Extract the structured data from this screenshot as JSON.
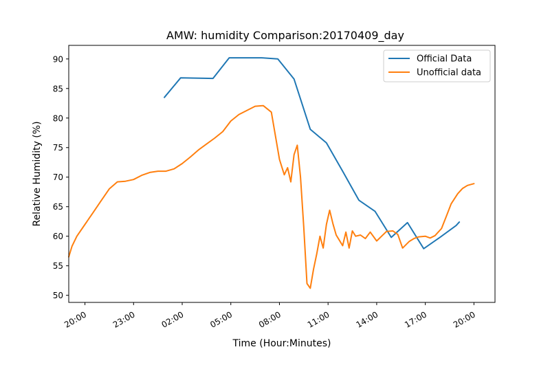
{
  "chart_data": {
    "type": "line",
    "title": "AMW: humidity Comparison:20170409_day",
    "xlabel": "Time (Hour:Minutes)",
    "ylabel": "Relative Humidity (%)",
    "x_tick_labels": [
      "20:00",
      "23:00",
      "02:00",
      "05:00",
      "08:00",
      "11:00",
      "14:00",
      "17:00",
      "20:00"
    ],
    "x_tick_hours": [
      20,
      23,
      26,
      29,
      32,
      35,
      38,
      41,
      44
    ],
    "xlim_hours": [
      19.0,
      45.3
    ],
    "y_ticks": [
      50,
      55,
      60,
      65,
      70,
      75,
      80,
      85,
      90
    ],
    "ylim": [
      48.8,
      92.3
    ],
    "grid": false,
    "legend_position": "top-right",
    "colors": {
      "official": "#1f77b4",
      "unofficial": "#ff7f0e"
    },
    "series": [
      {
        "name": "Official Data",
        "x": [
          24.9,
          25.9,
          27.9,
          28.9,
          30.9,
          31.9,
          32.9,
          33.9,
          34.9,
          35.9,
          36.9,
          37.9,
          38.9,
          39.9,
          40.9,
          41.9,
          42.9,
          43.1
        ],
        "y": [
          83.5,
          86.8,
          86.7,
          90.2,
          90.2,
          90.0,
          86.6,
          78.1,
          75.8,
          71.0,
          66.1,
          64.2,
          59.8,
          62.3,
          57.9,
          59.8,
          61.8,
          62.4
        ]
      },
      {
        "name": "Unofficial data",
        "x": [
          19.0,
          19.2,
          19.5,
          20.0,
          20.5,
          21.0,
          21.5,
          22.0,
          22.5,
          23.0,
          23.5,
          24.0,
          24.5,
          25.0,
          25.5,
          26.0,
          26.5,
          27.0,
          27.5,
          28.0,
          28.5,
          29.0,
          29.5,
          30.0,
          30.5,
          31.0,
          31.5,
          32.0,
          32.3,
          32.5,
          32.7,
          32.9,
          33.1,
          33.3,
          33.5,
          33.7,
          33.9,
          34.1,
          34.3,
          34.5,
          34.7,
          34.9,
          35.1,
          35.3,
          35.5,
          35.7,
          35.9,
          36.1,
          36.3,
          36.5,
          36.7,
          37.0,
          37.3,
          37.6,
          38.0,
          38.3,
          38.6,
          39.0,
          39.3,
          39.6,
          40.0,
          40.3,
          40.6,
          41.0,
          41.3,
          41.6,
          42.0,
          42.3,
          42.6,
          43.0,
          43.3,
          43.6,
          44.0
        ],
        "y": [
          56.5,
          58.3,
          60.0,
          62.0,
          64.0,
          66.0,
          68.0,
          69.2,
          69.3,
          69.6,
          70.3,
          70.8,
          71.0,
          71.0,
          71.4,
          72.3,
          73.4,
          74.6,
          75.6,
          76.6,
          77.7,
          79.5,
          80.6,
          81.3,
          82.0,
          82.1,
          81.0,
          73.0,
          70.4,
          71.6,
          69.2,
          73.8,
          75.4,
          70.0,
          61.6,
          52.0,
          51.2,
          54.4,
          57.0,
          60.0,
          58.0,
          62.0,
          64.4,
          62.1,
          60.2,
          59.3,
          58.4,
          60.7,
          58.0,
          60.9,
          60.0,
          60.2,
          59.6,
          60.7,
          59.2,
          60.0,
          60.8,
          60.9,
          60.3,
          58.0,
          59.1,
          59.6,
          59.9,
          60.0,
          59.7,
          60.1,
          61.3,
          63.4,
          65.5,
          67.2,
          68.1,
          68.6,
          68.9
        ]
      }
    ]
  }
}
